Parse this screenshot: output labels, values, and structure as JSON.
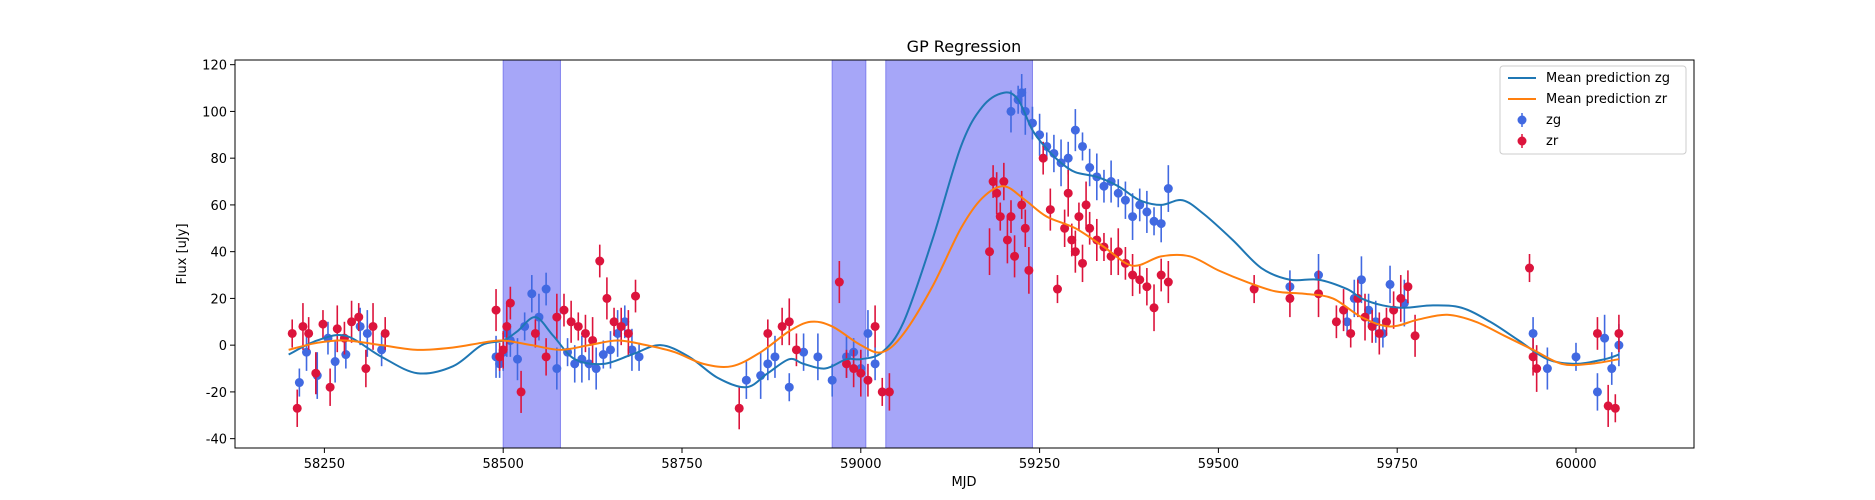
{
  "chart_data": {
    "type": "scatter",
    "title": "GP Regression",
    "xlabel": "MJD",
    "ylabel": "Flux [uJy]",
    "xlim": [
      58125,
      60165
    ],
    "ylim": [
      -44,
      122
    ],
    "xticks": [
      58250,
      58500,
      58750,
      59000,
      59250,
      59500,
      59750,
      60000
    ],
    "yticks": [
      -40,
      -20,
      0,
      20,
      40,
      60,
      80,
      100,
      120
    ],
    "legend_position": "top-right",
    "shaded_regions": [
      [
        58500,
        58580
      ],
      [
        58960,
        59007
      ],
      [
        59035,
        59240
      ]
    ],
    "colors": {
      "zg_line": "#1f77b4",
      "zr_line": "#ff7f0e",
      "zg_points": "#4169e1",
      "zr_points": "#dc143c",
      "shade": "#a6a6f8"
    },
    "legend": [
      {
        "label": "Mean prediction zg",
        "kind": "line",
        "color": "#1f77b4"
      },
      {
        "label": "Mean prediction zr",
        "kind": "line",
        "color": "#ff7f0e"
      },
      {
        "label": "zg",
        "kind": "point",
        "color": "#4169e1"
      },
      {
        "label": "zr",
        "kind": "point",
        "color": "#dc143c"
      }
    ],
    "series": [
      {
        "name": "Mean prediction zg",
        "kind": "line",
        "x": [
          58200,
          58240,
          58280,
          58330,
          58380,
          58430,
          58470,
          58500,
          58520,
          58545,
          58570,
          58600,
          58640,
          58680,
          58720,
          58760,
          58800,
          58840,
          58870,
          58900,
          58920,
          58950,
          58980,
          59000,
          59030,
          59060,
          59100,
          59140,
          59170,
          59200,
          59220,
          59240,
          59260,
          59280,
          59300,
          59330,
          59360,
          59390,
          59420,
          59450,
          59480,
          59520,
          59560,
          59600,
          59640,
          59680,
          59700,
          59730,
          59760,
          59800,
          59840,
          59880,
          59920,
          59960,
          60000,
          60040,
          60060
        ],
        "y": [
          -4,
          2,
          4,
          -5,
          -12,
          -9,
          0,
          2,
          6,
          12,
          4,
          -6,
          -8,
          -4,
          0,
          -5,
          -14,
          -18,
          -12,
          -6,
          -8,
          -10,
          -6,
          -6,
          -3,
          10,
          45,
          85,
          102,
          108,
          105,
          92,
          84,
          78,
          74,
          72,
          68,
          62,
          60,
          62,
          56,
          45,
          33,
          28,
          28,
          24,
          20,
          17,
          16,
          17,
          16,
          10,
          2,
          -6,
          -8,
          -6,
          -4
        ]
      },
      {
        "name": "Mean prediction zr",
        "kind": "line",
        "x": [
          58200,
          58240,
          58280,
          58330,
          58380,
          58430,
          58470,
          58500,
          58540,
          58580,
          58620,
          58660,
          58700,
          58740,
          58780,
          58820,
          58860,
          58900,
          58930,
          58960,
          59000,
          59030,
          59060,
          59100,
          59140,
          59170,
          59200,
          59230,
          59260,
          59300,
          59340,
          59380,
          59420,
          59460,
          59500,
          59540,
          59580,
          59620,
          59660,
          59700,
          59740,
          59780,
          59820,
          59860,
          59900,
          59940,
          59980,
          60020,
          60060
        ],
        "y": [
          -2,
          1,
          2,
          0,
          -2,
          -1,
          1,
          2,
          0,
          -2,
          0,
          2,
          0,
          -3,
          -8,
          -9,
          -3,
          6,
          10,
          8,
          0,
          -3,
          5,
          25,
          50,
          63,
          68,
          62,
          55,
          50,
          42,
          34,
          38,
          38,
          32,
          27,
          23,
          22,
          20,
          12,
          8,
          11,
          13,
          10,
          4,
          -2,
          -8,
          -8,
          -6
        ]
      },
      {
        "name": "zg",
        "kind": "point",
        "x": [
          58215,
          58225,
          58240,
          58255,
          58265,
          58280,
          58300,
          58310,
          58330,
          58490,
          58495,
          58500,
          58505,
          58510,
          58520,
          58530,
          58540,
          58550,
          58560,
          58575,
          58590,
          58600,
          58610,
          58620,
          58630,
          58640,
          58650,
          58660,
          58670,
          58680,
          58690,
          58840,
          58860,
          58870,
          58880,
          58900,
          58920,
          58940,
          58960,
          58980,
          58990,
          59000,
          59010,
          59020,
          59210,
          59220,
          59225,
          59230,
          59240,
          59250,
          59260,
          59270,
          59280,
          59290,
          59300,
          59310,
          59320,
          59330,
          59340,
          59350,
          59360,
          59370,
          59380,
          59390,
          59400,
          59410,
          59420,
          59430,
          59600,
          59640,
          59680,
          59690,
          59700,
          59710,
          59720,
          59730,
          59740,
          59760,
          59940,
          59960,
          60000,
          60030,
          60040,
          60050,
          60060
        ],
        "y": [
          -16,
          -3,
          -13,
          3,
          -7,
          -4,
          8,
          5,
          -2,
          -5,
          -8,
          -3,
          5,
          2,
          -6,
          8,
          22,
          12,
          24,
          -10,
          -3,
          -8,
          -6,
          -8,
          -10,
          -4,
          -2,
          5,
          10,
          -2,
          -5,
          -15,
          -13,
          -8,
          -5,
          -18,
          -3,
          -5,
          -15,
          -5,
          -3,
          -10,
          5,
          -8,
          100,
          105,
          108,
          100,
          95,
          90,
          85,
          82,
          78,
          80,
          92,
          85,
          76,
          72,
          68,
          70,
          65,
          62,
          55,
          60,
          57,
          53,
          52,
          67,
          25,
          30,
          10,
          20,
          28,
          15,
          10,
          5,
          26,
          18,
          5,
          -10,
          -5,
          -20,
          3,
          -10,
          0
        ]
      },
      {
        "name": "zr",
        "kind": "point",
        "x": [
          58205,
          58212,
          58220,
          58228,
          58238,
          58248,
          58258,
          58268,
          58278,
          58288,
          58298,
          58308,
          58318,
          58335,
          58490,
          58495,
          58500,
          58505,
          58510,
          58525,
          58545,
          58560,
          58575,
          58585,
          58595,
          58605,
          58615,
          58625,
          58635,
          58645,
          58655,
          58665,
          58675,
          58685,
          58830,
          58870,
          58890,
          58900,
          58910,
          58970,
          58980,
          58990,
          59000,
          59010,
          59020,
          59030,
          59040,
          59180,
          59185,
          59190,
          59195,
          59200,
          59205,
          59210,
          59215,
          59225,
          59230,
          59235,
          59255,
          59265,
          59275,
          59285,
          59290,
          59295,
          59300,
          59305,
          59310,
          59315,
          59320,
          59330,
          59340,
          59350,
          59360,
          59370,
          59380,
          59390,
          59400,
          59410,
          59420,
          59430,
          59550,
          59600,
          59640,
          59665,
          59675,
          59685,
          59695,
          59705,
          59715,
          59725,
          59735,
          59745,
          59755,
          59765,
          59775,
          59935,
          59940,
          59945,
          60030,
          60045,
          60055,
          60060
        ],
        "y": [
          5,
          -27,
          8,
          5,
          -12,
          9,
          -18,
          7,
          3,
          10,
          12,
          -10,
          8,
          5,
          15,
          -5,
          -2,
          8,
          18,
          -20,
          5,
          -5,
          12,
          15,
          10,
          8,
          5,
          2,
          36,
          20,
          10,
          8,
          5,
          21,
          -27,
          5,
          8,
          10,
          -2,
          27,
          -8,
          -10,
          -12,
          -15,
          8,
          -20,
          -20,
          40,
          70,
          65,
          55,
          70,
          45,
          55,
          38,
          60,
          50,
          32,
          80,
          58,
          24,
          50,
          65,
          45,
          40,
          55,
          35,
          60,
          50,
          45,
          42,
          38,
          40,
          35,
          30,
          28,
          25,
          16,
          30,
          27,
          24,
          20,
          22,
          10,
          15,
          5,
          20,
          12,
          8,
          5,
          10,
          15,
          20,
          25,
          4,
          33,
          -5,
          -10,
          5,
          -26,
          -27,
          5
        ]
      }
    ]
  }
}
